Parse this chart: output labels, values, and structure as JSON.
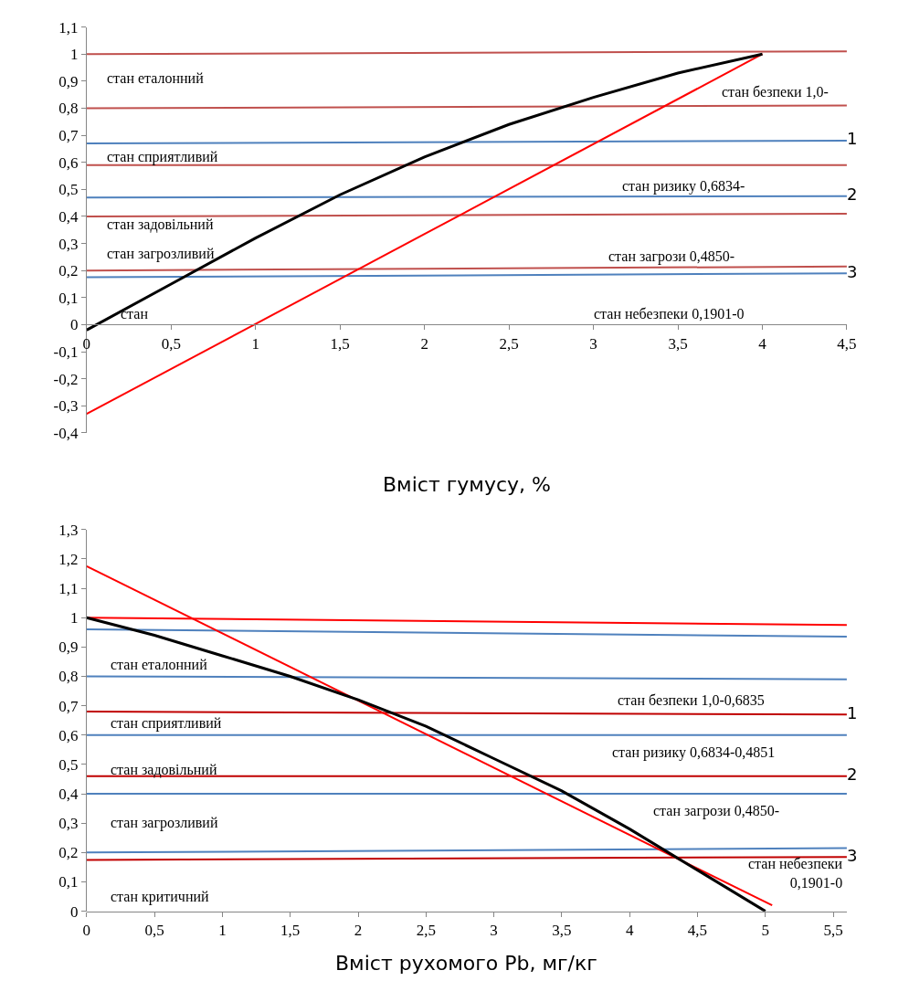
{
  "chart_data": [
    {
      "type": "line",
      "xlabel": "Вміст гумусу, %",
      "grid": false,
      "legend": false,
      "marker": "none",
      "line_style": "solid",
      "xlim": [
        0,
        4.5
      ],
      "ylim": [
        -0.4,
        1.1
      ],
      "xticks": [
        0,
        {
          "value": 0.5,
          "label": "0,5"
        },
        1,
        {
          "value": 1.5,
          "label": "1,5"
        },
        2,
        {
          "value": 2.5,
          "label": "2,5"
        },
        3,
        {
          "value": 3.5,
          "label": "3,5"
        },
        4,
        {
          "value": 4.5,
          "label": "4,5"
        }
      ],
      "yticks": [
        {
          "value": -0.4,
          "label": "-0,4"
        },
        {
          "value": -0.3,
          "label": "-0,3"
        },
        {
          "value": -0.2,
          "label": "-0,2"
        },
        {
          "value": -0.1,
          "label": "-0,1"
        },
        0,
        {
          "value": 0.1,
          "label": "0,1"
        },
        {
          "value": 0.2,
          "label": "0,2"
        },
        {
          "value": 0.3,
          "label": "0,3"
        },
        {
          "value": 0.4,
          "label": "0,4"
        },
        {
          "value": 0.5,
          "label": "0,5"
        },
        {
          "value": 0.6,
          "label": "0,6"
        },
        {
          "value": 0.7,
          "label": "0,7"
        },
        {
          "value": 0.8,
          "label": "0,8"
        },
        {
          "value": 0.9,
          "label": "0,9"
        },
        1,
        {
          "value": 1.1,
          "label": "1,1"
        }
      ],
      "series": [
        {
          "color": "#c0504d",
          "x": [
            0,
            4.5
          ],
          "values": [
            1.0,
            1.01
          ]
        },
        {
          "color": "#c0504d",
          "x": [
            0,
            4.5
          ],
          "values": [
            0.8,
            0.81
          ]
        },
        {
          "color": "#c0504d",
          "x": [
            0,
            4.5
          ],
          "values": [
            0.59,
            0.59
          ]
        },
        {
          "color": "#c0504d",
          "x": [
            0,
            4.5
          ],
          "values": [
            0.4,
            0.41
          ]
        },
        {
          "color": "#c0504d",
          "x": [
            0,
            4.5
          ],
          "values": [
            0.2,
            0.215
          ]
        },
        {
          "name": "1",
          "color": "#4f81bd",
          "x": [
            0,
            4.5
          ],
          "values": [
            0.67,
            0.68
          ]
        },
        {
          "name": "2",
          "color": "#4f81bd",
          "x": [
            0,
            4.5
          ],
          "values": [
            0.47,
            0.475
          ]
        },
        {
          "name": "3",
          "color": "#4f81bd",
          "x": [
            0,
            4.5
          ],
          "values": [
            0.175,
            0.19
          ]
        },
        {
          "color": "#ff0000",
          "x": [
            0,
            4
          ],
          "values": [
            -0.33,
            1.0
          ]
        },
        {
          "color": "#000000",
          "x": [
            0,
            0.5,
            1,
            1.5,
            2,
            2.5,
            3,
            3.5,
            4
          ],
          "values": [
            -0.02,
            0.15,
            0.32,
            0.48,
            0.62,
            0.74,
            0.84,
            0.93,
            1.0
          ]
        }
      ],
      "annotations": [
        "стан еталонний",
        "стан сприятливий",
        "стан задовільний",
        "стан загрозливий",
        "стан",
        "стан безпеки 1,0-",
        "стан ризику 0,6834-",
        "стан загрози 0,4850-",
        "стан небезпеки 0,1901-0"
      ]
    },
    {
      "type": "line",
      "xlabel": "Вміст рухомого Pb, мг/кг",
      "grid": false,
      "legend": false,
      "marker": "none",
      "line_style": "solid",
      "xlim": [
        0,
        5.6
      ],
      "ylim": [
        0,
        1.3
      ],
      "xticks": [
        0,
        {
          "value": 0.5,
          "label": "0,5"
        },
        1,
        {
          "value": 1.5,
          "label": "1,5"
        },
        2,
        {
          "value": 2.5,
          "label": "2,5"
        },
        3,
        {
          "value": 3.5,
          "label": "3,5"
        },
        4,
        {
          "value": 4.5,
          "label": "4,5"
        },
        5,
        {
          "value": 5.5,
          "label": "5,5"
        }
      ],
      "yticks": [
        0,
        {
          "value": 0.1,
          "label": "0,1"
        },
        {
          "value": 0.2,
          "label": "0,2"
        },
        {
          "value": 0.3,
          "label": "0,3"
        },
        {
          "value": 0.4,
          "label": "0,4"
        },
        {
          "value": 0.5,
          "label": "0,5"
        },
        {
          "value": 0.6,
          "label": "0,6"
        },
        {
          "value": 0.7,
          "label": "0,7"
        },
        {
          "value": 0.8,
          "label": "0,8"
        },
        {
          "value": 0.9,
          "label": "0,9"
        },
        1,
        {
          "value": 1.1,
          "label": "1,1"
        },
        {
          "value": 1.2,
          "label": "1,2"
        },
        {
          "value": 1.3,
          "label": "1,3"
        }
      ],
      "series": [
        {
          "color": "#ff0000",
          "x": [
            0,
            5.6
          ],
          "values": [
            1.0,
            0.975
          ]
        },
        {
          "color": "#4f81bd",
          "x": [
            0,
            5.6
          ],
          "values": [
            0.96,
            0.935
          ]
        },
        {
          "color": "#4f81bd",
          "x": [
            0,
            5.6
          ],
          "values": [
            0.8,
            0.79
          ]
        },
        {
          "name": "1",
          "color": "#c00000",
          "x": [
            0,
            5.6
          ],
          "values": [
            0.68,
            0.67
          ]
        },
        {
          "color": "#4f81bd",
          "x": [
            0,
            5.6
          ],
          "values": [
            0.6,
            0.6
          ]
        },
        {
          "name": "2",
          "color": "#c00000",
          "x": [
            0,
            5.6
          ],
          "values": [
            0.46,
            0.46
          ]
        },
        {
          "color": "#4f81bd",
          "x": [
            0,
            5.6
          ],
          "values": [
            0.4,
            0.4
          ]
        },
        {
          "color": "#4f81bd",
          "x": [
            0,
            5.6
          ],
          "values": [
            0.2,
            0.215
          ]
        },
        {
          "name": "3",
          "color": "#c00000",
          "x": [
            0,
            5.6
          ],
          "values": [
            0.175,
            0.185
          ]
        },
        {
          "color": "#ff0000",
          "x": [
            0,
            5.05
          ],
          "values": [
            1.175,
            0.02
          ]
        },
        {
          "color": "#000000",
          "x": [
            0,
            0.5,
            1,
            1.5,
            2,
            2.5,
            3,
            3.5,
            4,
            4.5,
            5
          ],
          "values": [
            1.0,
            0.94,
            0.87,
            0.8,
            0.72,
            0.63,
            0.52,
            0.41,
            0.28,
            0.14,
            0.0
          ]
        }
      ],
      "annotations": [
        "стан еталонний",
        "стан сприятливий",
        "стан задовільний",
        "стан загрозливий",
        "стан критичний",
        "стан безпеки 1,0-0,6835",
        "стан ризику 0,6834-0,4851",
        "стан загрози 0,4850-",
        "стан небезпеки\n0,1901-0"
      ]
    }
  ]
}
